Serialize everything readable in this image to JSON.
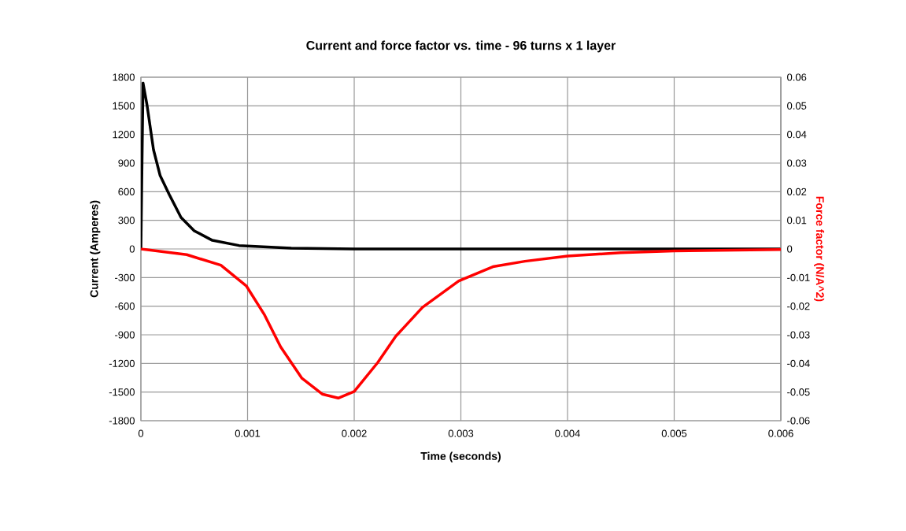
{
  "chart_data": {
    "type": "line",
    "title": "Current and force factor vs. time - 96 turns x 1 layer",
    "xlabel": "Time (seconds)",
    "ylabel": "Current (Amperes)",
    "y2label": "Force factor (N/A^2)",
    "xlim": [
      0,
      0.006
    ],
    "xticks": [
      0,
      0.001,
      0.002,
      0.003,
      0.004,
      0.005,
      0.006
    ],
    "ylim": [
      -1800,
      1800
    ],
    "yticks": [
      -1800,
      -1500,
      -1200,
      -900,
      -600,
      -300,
      0,
      300,
      600,
      900,
      1200,
      1500,
      1800
    ],
    "y2lim": [
      -0.06,
      0.06
    ],
    "y2ticks": [
      -0.06,
      -0.05,
      -0.04,
      -0.03,
      -0.02,
      -0.01,
      0,
      0.01,
      0.02,
      0.03,
      0.04,
      0.05,
      0.06
    ],
    "grid": true,
    "series": [
      {
        "color": "#000000",
        "axis": "y",
        "x": [
          0,
          2e-05,
          5.7e-05,
          0.000118,
          0.00018,
          0.000266,
          0.000376,
          0.0005,
          0.00067,
          0.00092,
          0.00141,
          0.002,
          0.003,
          0.004,
          0.005,
          0.006
        ],
        "values": [
          0,
          1740,
          1510,
          1040,
          770,
          570,
          330,
          190,
          90,
          36,
          8,
          0,
          0,
          0,
          0,
          0
        ]
      },
      {
        "color": "#ff0000",
        "axis": "y2",
        "x": [
          0,
          0.00043,
          0.00075,
          0.00099,
          0.00116,
          0.00131,
          0.00151,
          0.0017,
          0.00185,
          0.002,
          0.00222,
          0.00239,
          0.00264,
          0.00298,
          0.0033,
          0.0036,
          0.004,
          0.0045,
          0.005,
          0.006
        ],
        "values": [
          0,
          -0.002,
          -0.0057,
          -0.013,
          -0.0231,
          -0.0342,
          -0.0452,
          -0.0507,
          -0.0521,
          -0.0498,
          -0.0397,
          -0.0305,
          -0.0204,
          -0.0112,
          -0.0062,
          -0.0043,
          -0.0025,
          -0.0013,
          -0.0007,
          -0.0002
        ]
      }
    ]
  }
}
